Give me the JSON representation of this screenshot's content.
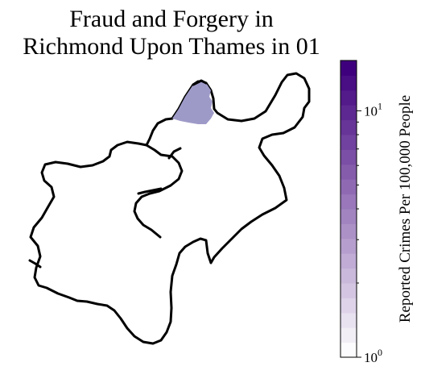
{
  "title": {
    "line1": "Fraud and Forgery in",
    "line2": "Richmond Upon Thames in 01"
  },
  "colorbar": {
    "label": "Reported Crimes Per 100,000 People",
    "scale": "log",
    "range": [
      1,
      16
    ],
    "ticks": [
      {
        "base": "10",
        "exp": "0",
        "value": 1
      },
      {
        "base": "10",
        "exp": "1",
        "value": 10
      }
    ],
    "color_low": "#fcfbfd",
    "color_high": "#3f007d",
    "steps": 20
  },
  "map": {
    "region": "Richmond Upon Thames",
    "highlighted_ward": {
      "value": 5,
      "color": "#9e9ac8"
    }
  }
}
